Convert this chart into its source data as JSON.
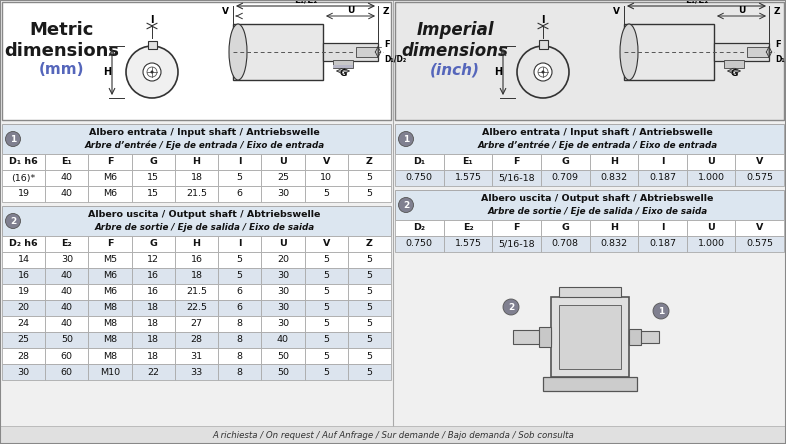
{
  "metric_title_line1": "Metric",
  "metric_title_line2": "dimensions",
  "metric_title_line3": "(mm)",
  "imperial_title_line1": "Imperial",
  "imperial_title_line2": "dimensions",
  "imperial_title_line3": "(inch)",
  "input_header_line1": "Albero entrata / Input shaft / Antriebswelle",
  "input_header_line2": "Arbre d’entrée / Eje de entrada / Eixo de entrada",
  "output_header_line1": "Albero uscita / Output shaft / Abtriebswelle",
  "output_header_line2": "Arbre de sortie / Eje de salida / Eixo de saida",
  "metric_input_cols": [
    "D₁ h6",
    "E₁",
    "F",
    "G",
    "H",
    "I",
    "U",
    "V",
    "Z"
  ],
  "metric_input_data": [
    [
      "(16)*",
      "40",
      "M6",
      "15",
      "18",
      "5",
      "25",
      "10",
      "5"
    ],
    [
      "19",
      "40",
      "M6",
      "15",
      "21.5",
      "6",
      "30",
      "5",
      "5"
    ]
  ],
  "metric_input_shaded": [],
  "metric_output_cols": [
    "D₂ h6",
    "E₂",
    "F",
    "G",
    "H",
    "I",
    "U",
    "V",
    "Z"
  ],
  "metric_output_data": [
    [
      "14",
      "30",
      "M5",
      "12",
      "16",
      "5",
      "20",
      "5",
      "5"
    ],
    [
      "16",
      "40",
      "M6",
      "16",
      "18",
      "5",
      "30",
      "5",
      "5"
    ],
    [
      "19",
      "40",
      "M6",
      "16",
      "21.5",
      "6",
      "30",
      "5",
      "5"
    ],
    [
      "20",
      "40",
      "M8",
      "18",
      "22.5",
      "6",
      "30",
      "5",
      "5"
    ],
    [
      "24",
      "40",
      "M8",
      "18",
      "27",
      "8",
      "30",
      "5",
      "5"
    ],
    [
      "25",
      "50",
      "M8",
      "18",
      "28",
      "8",
      "40",
      "5",
      "5"
    ],
    [
      "28",
      "60",
      "M8",
      "18",
      "31",
      "8",
      "50",
      "5",
      "5"
    ],
    [
      "30",
      "60",
      "M10",
      "22",
      "33",
      "8",
      "50",
      "5",
      "5"
    ]
  ],
  "metric_output_shaded": [
    1,
    3,
    5,
    7
  ],
  "imperial_input_cols": [
    "D₁",
    "E₁",
    "F",
    "G",
    "H",
    "I",
    "U",
    "V"
  ],
  "imperial_input_data": [
    [
      "0.750",
      "1.575",
      "5/16-18",
      "0.709",
      "0.832",
      "0.187",
      "1.000",
      "0.575"
    ]
  ],
  "imperial_input_shaded": [
    0
  ],
  "imperial_output_cols": [
    "D₂",
    "E₂",
    "F",
    "G",
    "H",
    "I",
    "U",
    "V"
  ],
  "imperial_output_data": [
    [
      "0.750",
      "1.575",
      "5/16-18",
      "0.708",
      "0.832",
      "0.187",
      "1.000",
      "0.575"
    ]
  ],
  "imperial_output_shaded": [
    0
  ],
  "footer_text": "A richiesta / On request / Auf Anfrage / Sur demande / Bajo demanda / Sob consulta",
  "bg_white": "#ffffff",
  "bg_gray": "#e8e8e8",
  "bg_light": "#f0f0f0",
  "table_header_bg": "#d4dce8",
  "table_row_shaded": "#dce4ee",
  "table_border": "#aaaaaa",
  "section_header_bg": "#dce6f0",
  "num_circle_color": "#808090",
  "footer_bg": "#e0e0e0",
  "metric_title_color": "#1a1a1a",
  "metric_mm_color": "#5566aa",
  "imperial_title_color": "#1a1a1a",
  "imperial_inch_color": "#5566aa"
}
